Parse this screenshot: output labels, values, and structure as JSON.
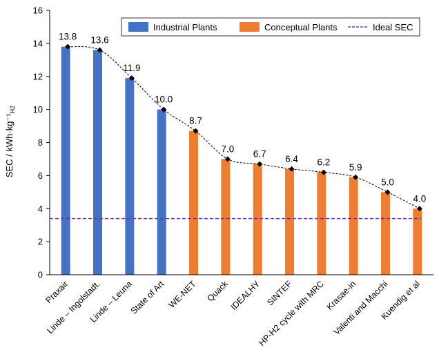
{
  "chart_data": {
    "type": "bar",
    "categories": [
      "Praxair",
      "Linde – Ingolstadt.",
      "Linde – Leuna",
      "State of Art",
      "WE-NET",
      "Quack",
      "IDEALHY",
      "SINTEF",
      "HP-H2 cycle with MRC",
      "Krasae-in",
      "Valenti and Macchi",
      "Kuendig et al"
    ],
    "values": [
      13.8,
      13.6,
      11.9,
      10.0,
      8.7,
      7.0,
      6.7,
      6.4,
      6.2,
      5.9,
      5.0,
      4.0
    ],
    "value_labels": [
      "13.8",
      "13.6",
      "11.9",
      "10.0",
      "8.7",
      "7.0",
      "6.7",
      "6.4",
      "6.2",
      "5.9",
      "5.0",
      "4.0"
    ],
    "groups": [
      "Industrial Plants",
      "Industrial Plants",
      "Industrial Plants",
      "Industrial Plants",
      "Conceptual Plants",
      "Conceptual Plants",
      "Conceptual Plants",
      "Conceptual Plants",
      "Conceptual Plants",
      "Conceptual Plants",
      "Conceptual Plants",
      "Conceptual Plants"
    ],
    "series": [
      {
        "name": "Industrial Plants",
        "color": "#4472C4"
      },
      {
        "name": "Conceptual Plants",
        "color": "#ED7D31"
      }
    ],
    "reference_line": {
      "name": "Ideal SEC",
      "value": 3.4,
      "color": "#7030A0",
      "style": "dashed"
    },
    "trend_line": {
      "style": "dashed",
      "color": "#000000",
      "markers": "diamond"
    },
    "ylabel": "SEC / kWh·kg⁻¹",
    "ylabel_subscript": "H2",
    "ylim": [
      0,
      16
    ],
    "yticks": [
      "0",
      "2",
      "4",
      "6",
      "8",
      "10",
      "12",
      "14",
      "16"
    ],
    "grid": false,
    "legend_position": "top"
  }
}
